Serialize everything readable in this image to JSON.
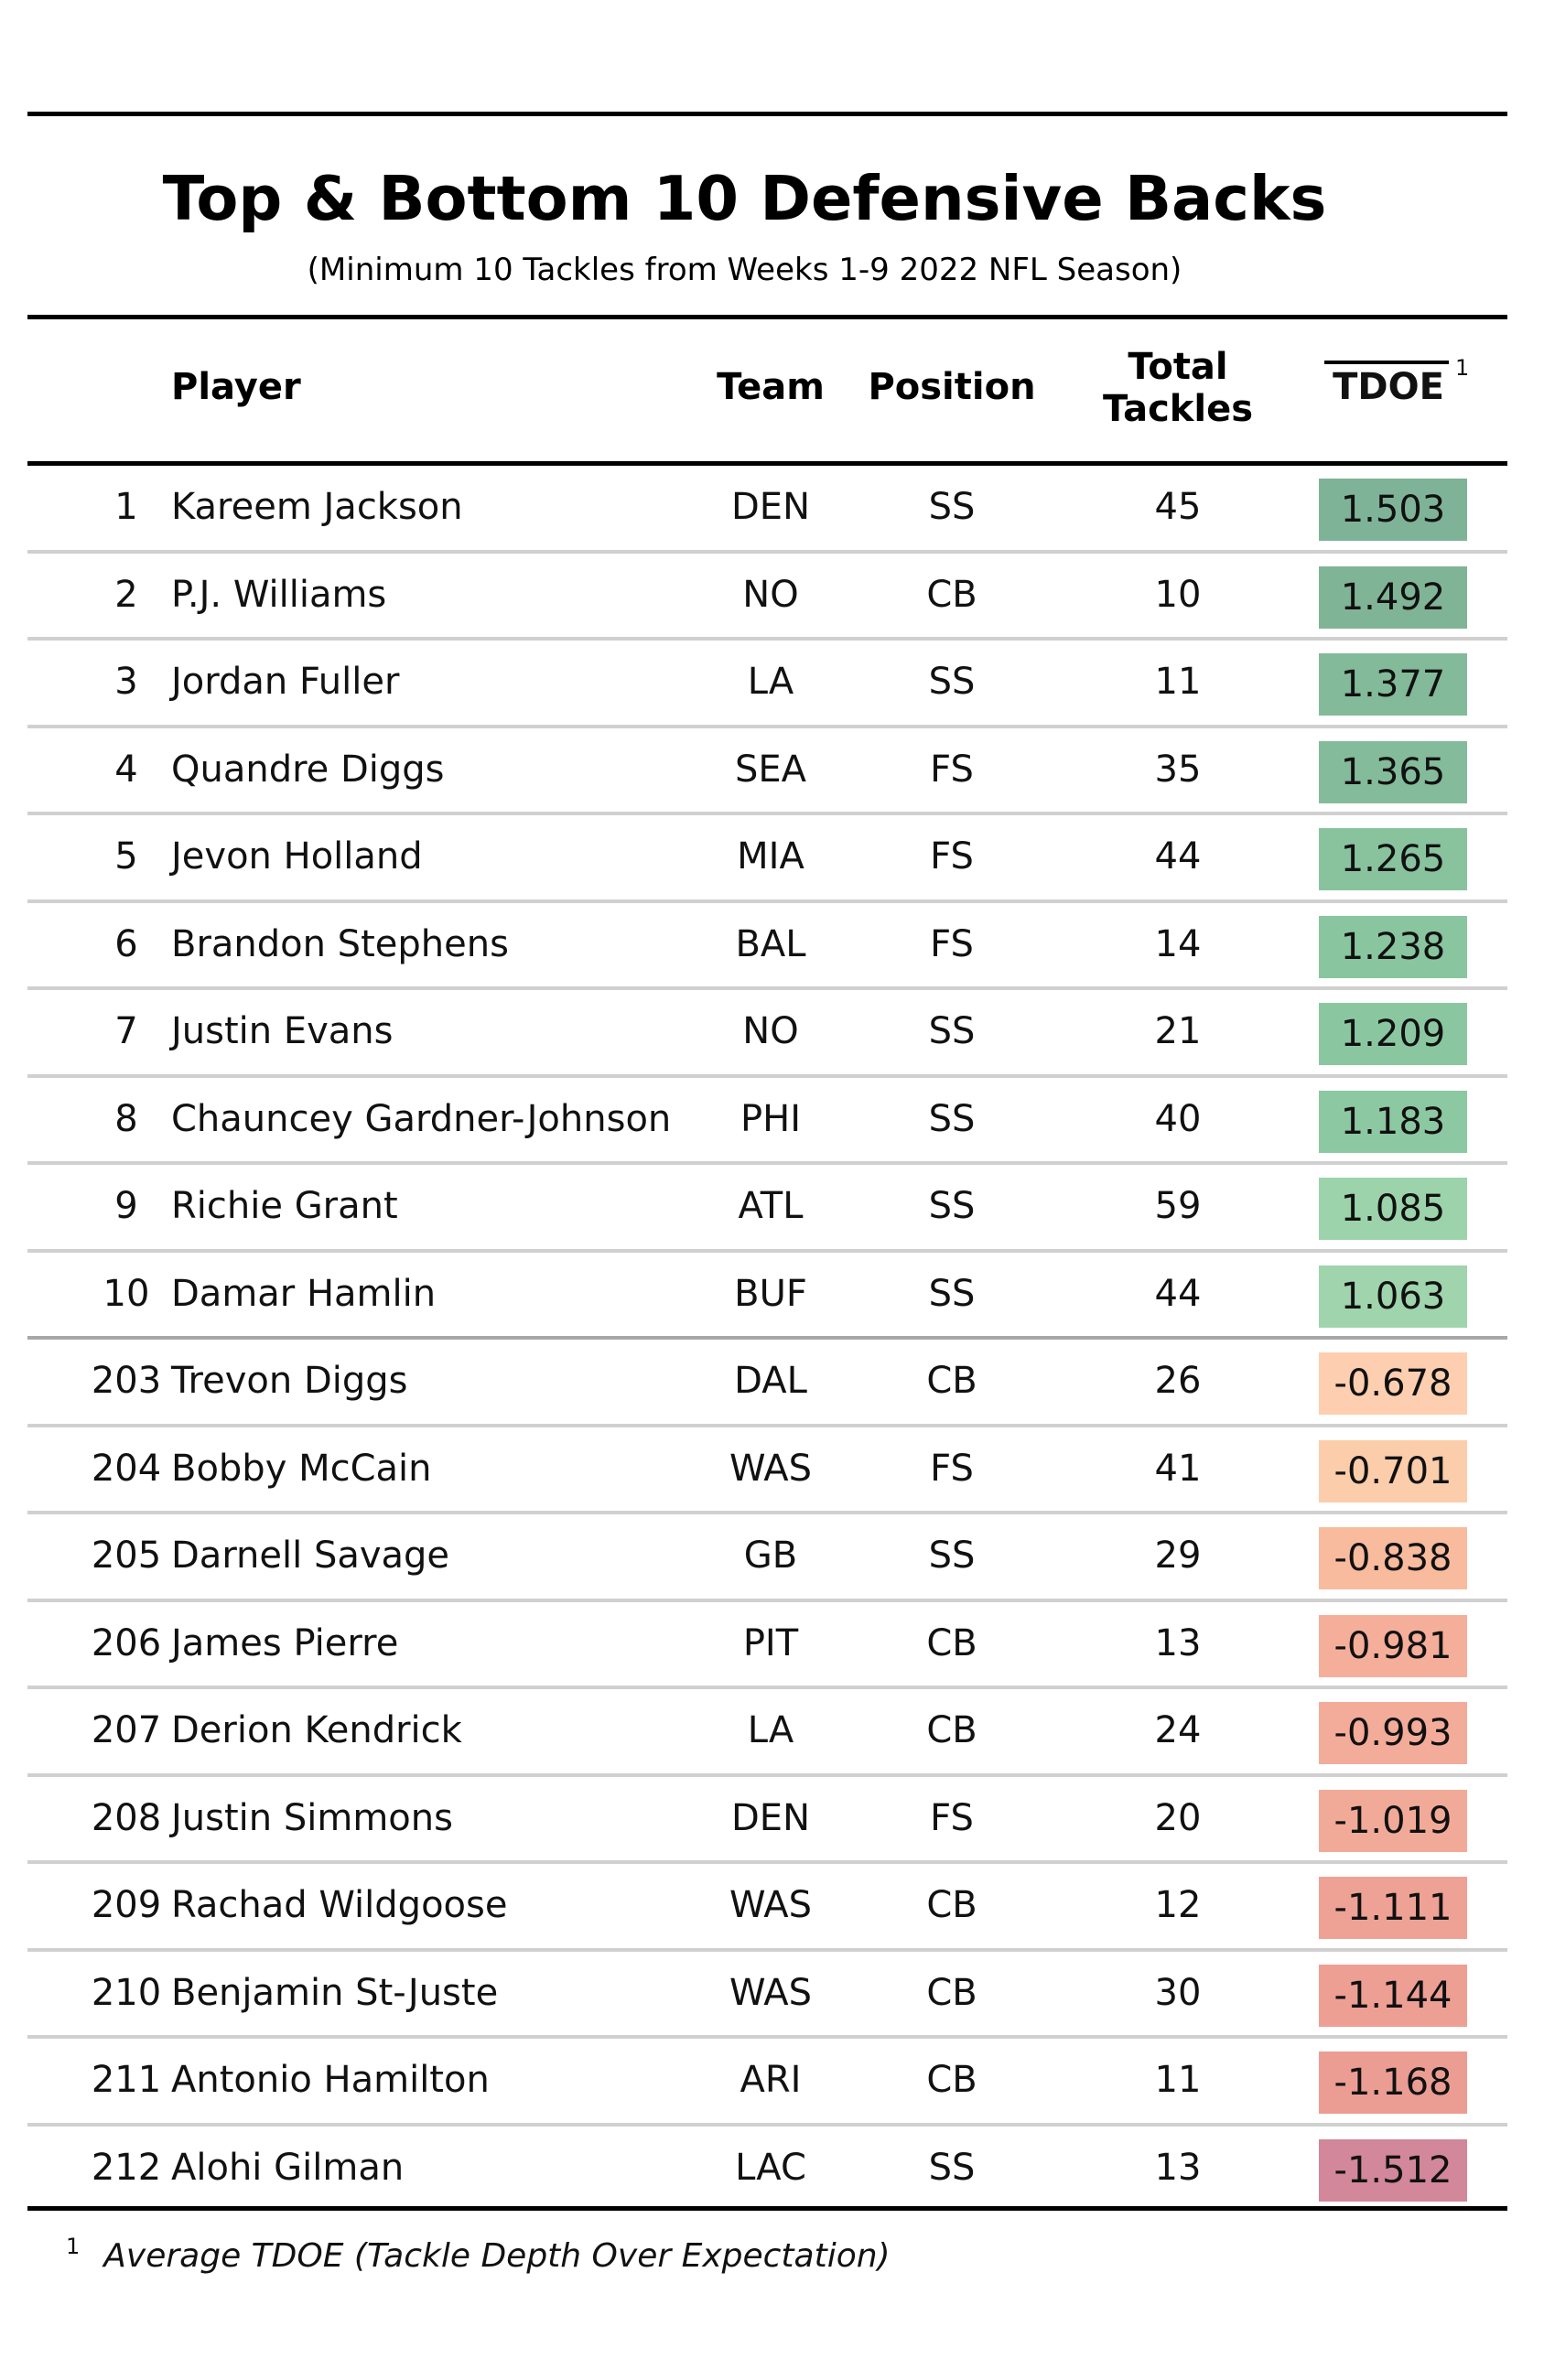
{
  "title": "Top & Bottom 10 Defensive Backs",
  "subtitle": "(Minimum 10 Tackles from Weeks 1-9 2022 NFL Season)",
  "headers": {
    "player": "Player",
    "team": "Team",
    "position": "Position",
    "total_tackles_line1": "Total",
    "total_tackles_line2": "Tackles",
    "tdoe": "TDOE",
    "tdoe_footnote_mark": "1"
  },
  "footnote": {
    "mark": "1",
    "text": "Average TDOE (Tackle Depth Over Expectation)"
  },
  "colors": {
    "rule": "#000000",
    "row_separator": "#d0d0d0",
    "group_separator": "#a8a8a8"
  },
  "chart_data": {
    "type": "table",
    "title": "Top & Bottom 10 Defensive Backs",
    "subtitle": "(Minimum 10 Tackles from Weeks 1-9 2022 NFL Season)",
    "columns": [
      "",
      "Player",
      "Team",
      "Position",
      "Total Tackles",
      "TDOE"
    ],
    "rows": [
      {
        "rank": "1",
        "player": "Kareem Jackson",
        "team": "DEN",
        "position": "SS",
        "total_tackles": "45",
        "tdoe": "1.503",
        "color": "#7fb397"
      },
      {
        "rank": "2",
        "player": "P.J. Williams",
        "team": "NO",
        "position": "CB",
        "total_tackles": "10",
        "tdoe": "1.492",
        "color": "#80b497"
      },
      {
        "rank": "3",
        "player": "Jordan Fuller",
        "team": "LA",
        "position": "SS",
        "total_tackles": "11",
        "tdoe": "1.377",
        "color": "#83ba9a"
      },
      {
        "rank": "4",
        "player": "Quandre Diggs",
        "team": "SEA",
        "position": "FS",
        "total_tackles": "35",
        "tdoe": "1.365",
        "color": "#84bb9b"
      },
      {
        "rank": "5",
        "player": "Jevon Holland",
        "team": "MIA",
        "position": "FS",
        "total_tackles": "44",
        "tdoe": "1.265",
        "color": "#88c39e"
      },
      {
        "rank": "6",
        "player": "Brandon Stephens",
        "team": "BAL",
        "position": "FS",
        "total_tackles": "14",
        "tdoe": "1.238",
        "color": "#89c59f"
      },
      {
        "rank": "7",
        "player": "Justin Evans",
        "team": "NO",
        "position": "SS",
        "total_tackles": "21",
        "tdoe": "1.209",
        "color": "#8ac7a0"
      },
      {
        "rank": "8",
        "player": "Chauncey Gardner-Johnson",
        "team": "PHI",
        "position": "SS",
        "total_tackles": "40",
        "tdoe": "1.183",
        "color": "#8cc8a1"
      },
      {
        "rank": "9",
        "player": "Richie Grant",
        "team": "ATL",
        "position": "SS",
        "total_tackles": "59",
        "tdoe": "1.085",
        "color": "#9cd3aa"
      },
      {
        "rank": "10",
        "player": "Damar Hamlin",
        "team": "BUF",
        "position": "SS",
        "total_tackles": "44",
        "tdoe": "1.063",
        "color": "#9fd4ac"
      },
      {
        "rank": "203",
        "player": "Trevon Diggs",
        "team": "DAL",
        "position": "CB",
        "total_tackles": "26",
        "tdoe": "-0.678",
        "color": "#fdcfb0"
      },
      {
        "rank": "204",
        "player": "Bobby McCain",
        "team": "WAS",
        "position": "FS",
        "total_tackles": "41",
        "tdoe": "-0.701",
        "color": "#fccdaa"
      },
      {
        "rank": "205",
        "player": "Darnell Savage",
        "team": "GB",
        "position": "SS",
        "total_tackles": "29",
        "tdoe": "-0.838",
        "color": "#f9bb9e"
      },
      {
        "rank": "206",
        "player": "James Pierre",
        "team": "PIT",
        "position": "CB",
        "total_tackles": "13",
        "tdoe": "-0.981",
        "color": "#f4ae9a"
      },
      {
        "rank": "207",
        "player": "Derion Kendrick",
        "team": "LA",
        "position": "CB",
        "total_tackles": "24",
        "tdoe": "-0.993",
        "color": "#f3ac99"
      },
      {
        "rank": "208",
        "player": "Justin Simmons",
        "team": "DEN",
        "position": "FS",
        "total_tackles": "20",
        "tdoe": "-1.019",
        "color": "#f2aa98"
      },
      {
        "rank": "209",
        "player": "Rachad Wildgoose",
        "team": "WAS",
        "position": "CB",
        "total_tackles": "12",
        "tdoe": "-1.111",
        "color": "#eea195"
      },
      {
        "rank": "210",
        "player": "Benjamin St-Juste",
        "team": "WAS",
        "position": "CB",
        "total_tackles": "30",
        "tdoe": "-1.144",
        "color": "#ed9f94"
      },
      {
        "rank": "211",
        "player": "Antonio Hamilton",
        "team": "ARI",
        "position": "CB",
        "total_tackles": "11",
        "tdoe": "-1.168",
        "color": "#ec9d93"
      },
      {
        "rank": "212",
        "player": "Alohi Gilman",
        "team": "LAC",
        "position": "SS",
        "total_tackles": "13",
        "tdoe": "-1.512",
        "color": "#d3879a"
      }
    ]
  }
}
